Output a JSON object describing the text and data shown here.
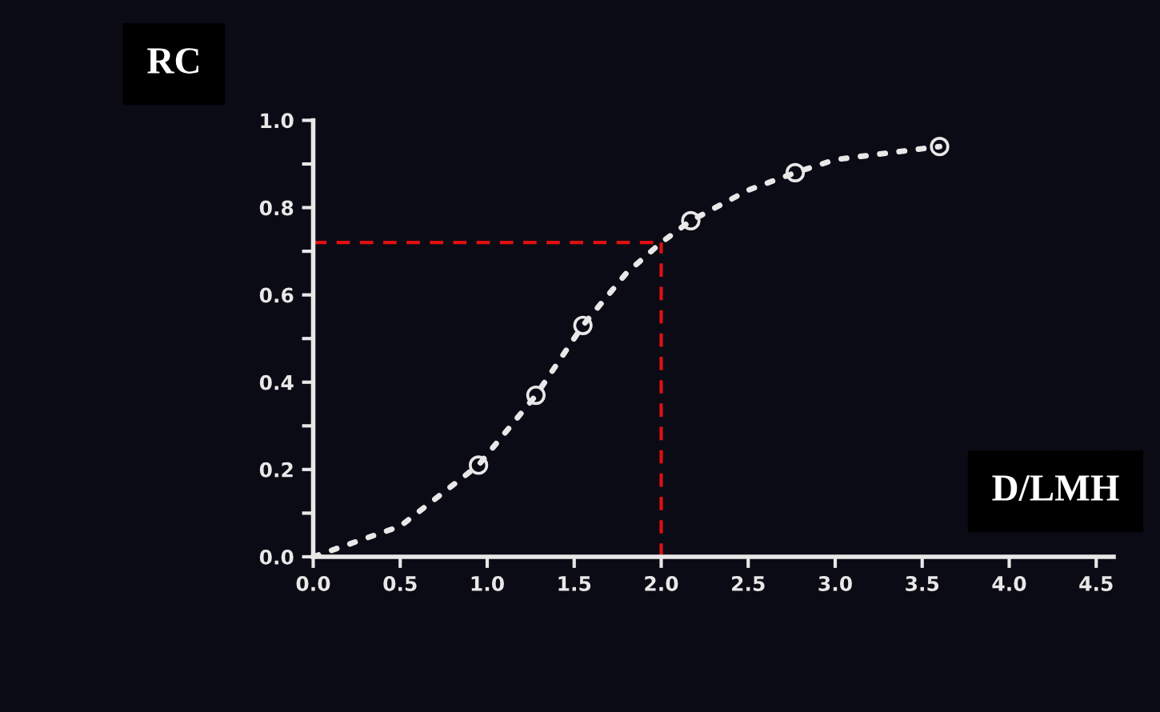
{
  "chart_data": {
    "type": "line",
    "xlabel": "D/LMH",
    "ylabel": "RC",
    "series": [
      {
        "color": "#e8e8e8",
        "line_style": "dotted",
        "marker": "none",
        "x": [
          0.0,
          0.5,
          0.95,
          1.28,
          1.55,
          1.8,
          2.0,
          2.17,
          2.5,
          2.77,
          3.0,
          3.6
        ],
        "values": [
          0.0,
          0.07,
          0.21,
          0.37,
          0.53,
          0.65,
          0.72,
          0.77,
          0.84,
          0.88,
          0.91,
          0.94
        ]
      },
      {
        "type": "scatter",
        "color": "#e8e8e8",
        "marker": "circle",
        "x": [
          0.95,
          1.28,
          1.55,
          2.17,
          2.77,
          3.6
        ],
        "values": [
          0.21,
          0.37,
          0.53,
          0.77,
          0.88,
          0.94
        ]
      }
    ],
    "xlim": [
      0,
      4.6
    ],
    "ylim": [
      0,
      1.0
    ],
    "xticks": [
      {
        "value": 0,
        "label": "0.0"
      },
      0.5,
      {
        "value": 1,
        "label": "1.0"
      },
      1.5,
      {
        "value": 2,
        "label": "2.0"
      },
      2.5,
      {
        "value": 3,
        "label": "3.0"
      },
      3.5,
      {
        "value": 4,
        "label": "4.0"
      },
      4.5
    ],
    "yticks": [
      {
        "value": 0,
        "label": "0.0"
      },
      {
        "value": 0.1,
        "label": null
      },
      0.2,
      {
        "value": 0.3,
        "label": null
      },
      0.4,
      {
        "value": 0.5,
        "label": null
      },
      0.6,
      {
        "value": 0.7,
        "label": null
      },
      0.8,
      {
        "value": 0.9,
        "label": null
      },
      {
        "value": 1,
        "label": "1.0"
      }
    ],
    "ref_lines": [
      {
        "axis": "x",
        "value": 2.0,
        "color": "#e01010",
        "line_style": "dashed"
      },
      {
        "axis": "y",
        "value": 0.72,
        "color": "#e01010",
        "line_style": "dashed"
      }
    ],
    "grid": false,
    "legend": false
  }
}
